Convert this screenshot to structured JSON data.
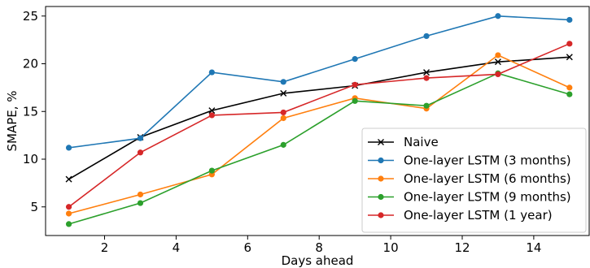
{
  "chart_data": {
    "type": "line",
    "title": "",
    "xlabel": "Days ahead",
    "ylabel": "SMAPE, %",
    "xlim": [
      0.35,
      15.55
    ],
    "ylim": [
      2.0,
      26.0
    ],
    "xticks": [
      2,
      4,
      6,
      8,
      10,
      12,
      14
    ],
    "yticks": [
      5,
      10,
      15,
      20,
      25
    ],
    "grid": false,
    "legend": "lower-right",
    "x": [
      1,
      3,
      5,
      7,
      9,
      11,
      13,
      15
    ],
    "series": [
      {
        "name": "Naive",
        "color": "#000000",
        "marker": "x",
        "values": [
          7.9,
          12.3,
          15.1,
          16.9,
          17.7,
          19.1,
          20.2,
          20.7
        ]
      },
      {
        "name": "One-layer LSTM (3 months)",
        "color": "#1f77b4",
        "marker": "o",
        "values": [
          11.2,
          12.2,
          19.1,
          18.1,
          20.5,
          22.9,
          25.0,
          24.6
        ]
      },
      {
        "name": "One-layer LSTM (6 months)",
        "color": "#ff7f0e",
        "marker": "o",
        "values": [
          4.3,
          6.3,
          8.4,
          14.3,
          16.4,
          15.3,
          20.9,
          17.5
        ]
      },
      {
        "name": "One-layer LSTM (9 months)",
        "color": "#2ca02c",
        "marker": "o",
        "values": [
          3.2,
          5.4,
          8.8,
          11.5,
          16.1,
          15.6,
          19.0,
          16.8
        ]
      },
      {
        "name": "One-layer LSTM (1 year)",
        "color": "#d62728",
        "marker": "o",
        "values": [
          5.0,
          10.7,
          14.6,
          14.9,
          17.8,
          18.5,
          18.9,
          22.1
        ]
      }
    ]
  }
}
